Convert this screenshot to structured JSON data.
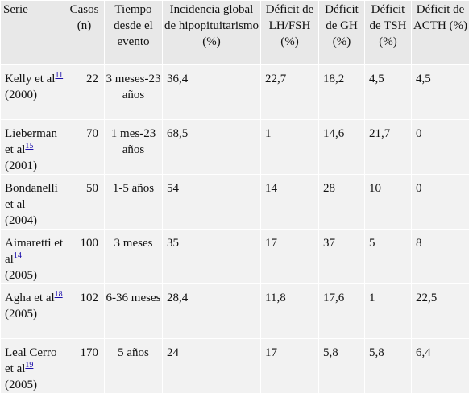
{
  "table": {
    "headers": [
      "Serie",
      "Casos (n)",
      "Tiempo desde el evento",
      "Incidencia global de hipopituitarismo (%)",
      "Déficit de LH/FSH (%)",
      "Déficit de GH (%)",
      "Déficit de TSH (%)",
      "Déficit de ACTH (%)"
    ],
    "rows": [
      {
        "serie": {
          "name": "Kelly et al",
          "ref": "11",
          "year": "(2000)"
        },
        "casos": "22",
        "tiempo": "3 meses-23 años",
        "incidencia": "36,4",
        "lhfsh": "22,7",
        "gh": "18,2",
        "tsh": "4,5",
        "acth": "4,5"
      },
      {
        "serie": {
          "name": "Lieberman et al",
          "ref": "15",
          "year": "(2001)"
        },
        "casos": "70",
        "tiempo": "1 mes-23 años",
        "incidencia": "68,5",
        "lhfsh": "1",
        "gh": "14,6",
        "tsh": "21,7",
        "acth": "0"
      },
      {
        "serie": {
          "name": "Bondanelli et al",
          "ref": "",
          "year": "(2004)"
        },
        "casos": "50",
        "tiempo": "1-5 años",
        "incidencia": "54",
        "lhfsh": "14",
        "gh": "28",
        "tsh": "10",
        "acth": "0"
      },
      {
        "serie": {
          "name": "Aimaretti et al",
          "ref": "14",
          "year": "(2005)"
        },
        "casos": "100",
        "tiempo": "3 meses",
        "incidencia": "35",
        "lhfsh": "17",
        "gh": "37",
        "tsh": "5",
        "acth": "8"
      },
      {
        "serie": {
          "name": "Agha et al",
          "ref": "18",
          "year": "(2005)"
        },
        "casos": "102",
        "tiempo": "6-36 meses",
        "incidencia": "28,4",
        "lhfsh": "11,8",
        "gh": "17,6",
        "tsh": "1",
        "acth": "22,5"
      },
      {
        "serie": {
          "name": "Leal Cerro et al",
          "ref": "19",
          "year": "(2005)"
        },
        "casos": "170",
        "tiempo": "5 años",
        "incidencia": "24",
        "lhfsh": "17",
        "gh": "5,8",
        "tsh": "5,8",
        "acth": "6,4"
      }
    ]
  },
  "colors": {
    "header_bg": "#e8e8e8",
    "row_bg": "#f2f2f2",
    "link": "#1a0dab"
  }
}
